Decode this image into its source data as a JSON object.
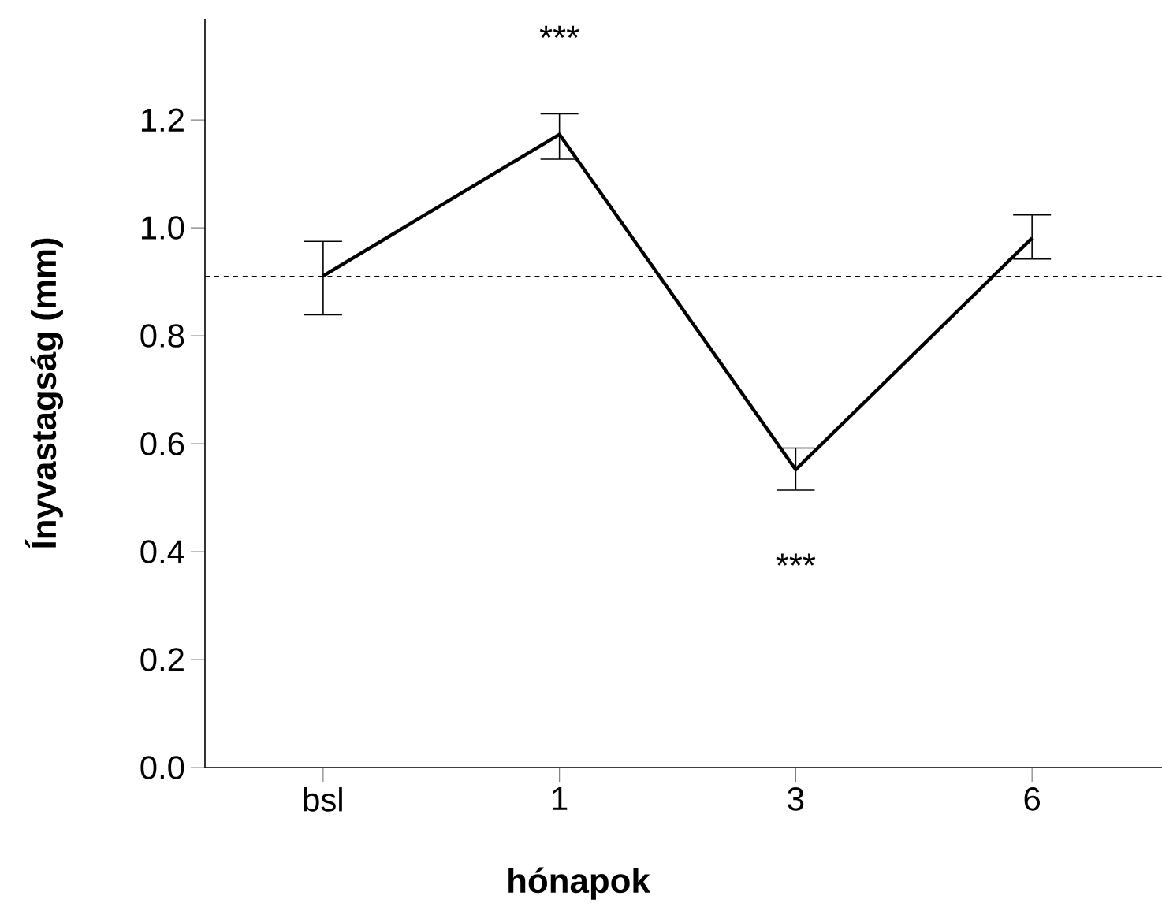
{
  "chart_data": {
    "type": "line",
    "xlabel": "hónapok",
    "ylabel": "Ínyvastagság (mm)",
    "categories": [
      "bsl",
      "1",
      "3",
      "6"
    ],
    "values": [
      0.911,
      1.173,
      0.552,
      0.981
    ],
    "color": "#000000",
    "errors": [
      [
        0.839,
        0.975
      ],
      [
        1.127,
        1.211
      ],
      [
        0.514,
        0.592
      ],
      [
        0.942,
        1.024
      ]
    ],
    "ylim": [
      0,
      1.387
    ],
    "yticks": [
      {
        "value": 0,
        "label": "0.0"
      },
      {
        "value": 0.2,
        "label": "0.2"
      },
      {
        "value": 0.4,
        "label": "0.4"
      },
      {
        "value": 0.6,
        "label": "0.6"
      },
      {
        "value": 0.8,
        "label": "0.8"
      },
      {
        "value": 1.0,
        "label": "1.0"
      },
      {
        "value": 1.2,
        "label": "1.2"
      }
    ],
    "ref_lines": [
      {
        "axis": "y",
        "value": 0.91,
        "line_style": "dashed",
        "color": "#000000"
      }
    ],
    "annotations": [
      "***",
      "***"
    ],
    "grid": false,
    "marker": "none",
    "line_style": "solid"
  }
}
